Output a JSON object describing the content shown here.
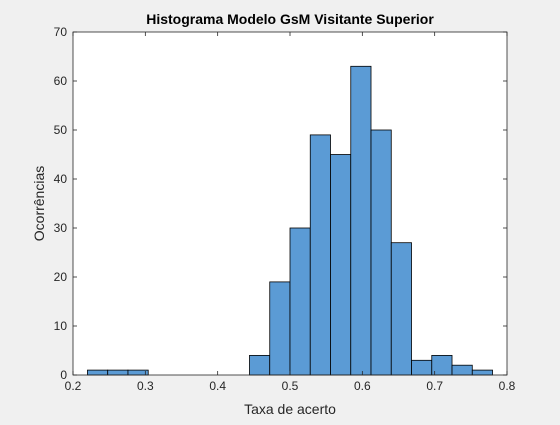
{
  "chart_data": {
    "type": "bar",
    "title": "Histograma Modelo GsM Visitante Superior",
    "xlabel": "Taxa de acerto",
    "ylabel": "Ocorrências",
    "xlim": [
      0.2,
      0.8
    ],
    "ylim": [
      0,
      70
    ],
    "xticks": [
      0.2,
      0.3,
      0.4,
      0.5,
      0.6,
      0.7,
      0.8
    ],
    "yticks": [
      0,
      10,
      20,
      30,
      40,
      50,
      60,
      70
    ],
    "xtick_labels": [
      "0.2",
      "0.3",
      "0.4",
      "0.5",
      "0.6",
      "0.7",
      "0.8"
    ],
    "ytick_labels": [
      "0",
      "10",
      "20",
      "30",
      "40",
      "50",
      "60",
      "70"
    ],
    "grid": false,
    "bin_edges": [
      0.22,
      0.248,
      0.276,
      0.304,
      0.332,
      0.36,
      0.388,
      0.416,
      0.444,
      0.472,
      0.5,
      0.528,
      0.556,
      0.584,
      0.612,
      0.64,
      0.668,
      0.696,
      0.724,
      0.752,
      0.78
    ],
    "counts": [
      1,
      1,
      1,
      0,
      0,
      0,
      0,
      0,
      4,
      19,
      30,
      49,
      45,
      63,
      50,
      27,
      3,
      4,
      2,
      1
    ],
    "bar_color": "#5B9BD5",
    "edge_color": "#000000"
  }
}
